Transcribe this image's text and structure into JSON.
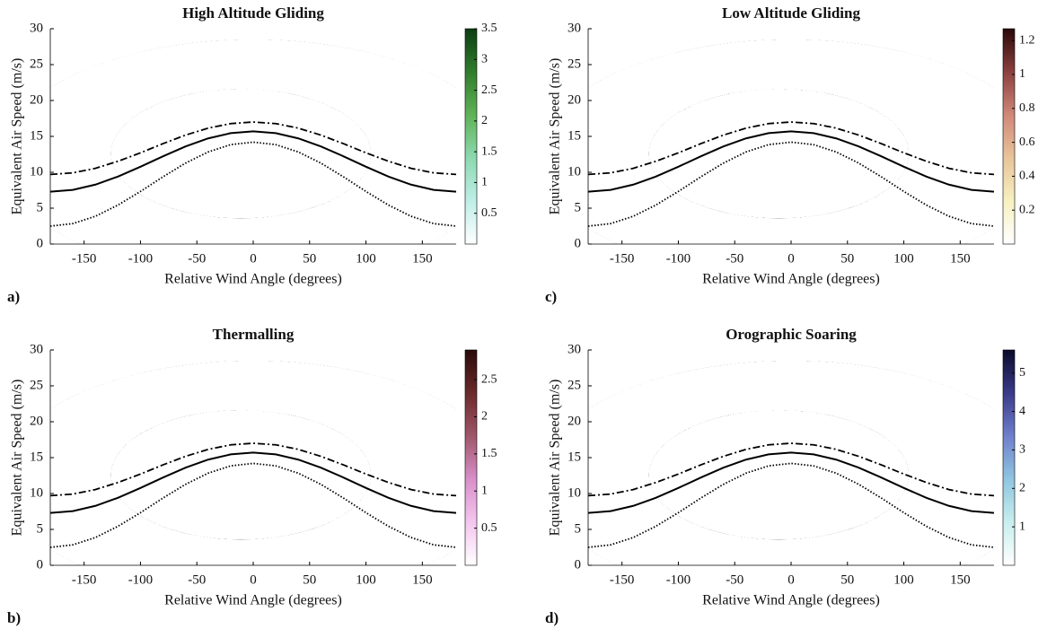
{
  "chart_data": [
    {
      "type": "density",
      "title": "High Altitude Gliding",
      "panel_label": "a)",
      "xlabel": "Relative Wind Angle (degrees)",
      "ylabel": "Equivalent Air Speed (m/s)",
      "xlim": [
        -180,
        180
      ],
      "ylim": [
        0,
        30
      ],
      "xticks": [
        -150,
        -100,
        -50,
        0,
        50,
        100,
        150
      ],
      "yticks": [
        0,
        5,
        10,
        15,
        20,
        25,
        30
      ],
      "colormap": [
        "#ffffff",
        "#bfeee8",
        "#8cd9b0",
        "#5fb356",
        "#2f7d2c",
        "#0d3d14"
      ],
      "clim": [
        0,
        3.5
      ],
      "cticks": [
        0.5,
        1,
        1.5,
        2,
        2.5,
        3,
        3.5
      ],
      "x": [
        -180,
        -160,
        -140,
        -120,
        -100,
        -80,
        -60,
        -40,
        -20,
        0,
        20,
        40,
        60,
        80,
        100,
        120,
        140,
        160,
        180
      ],
      "series": [
        {
          "color": "#000000",
          "style": "dashdot",
          "values": [
            9.7,
            9.92,
            10.55,
            11.53,
            12.71,
            13.99,
            15.18,
            16.15,
            16.78,
            17.0,
            16.78,
            16.15,
            15.18,
            13.99,
            12.71,
            11.53,
            10.55,
            9.92,
            9.7
          ]
        },
        {
          "color": "#000000",
          "style": "solid",
          "values": [
            7.3,
            7.55,
            8.28,
            9.4,
            10.77,
            12.23,
            13.6,
            14.72,
            15.45,
            15.7,
            15.45,
            14.72,
            13.6,
            12.23,
            10.77,
            9.4,
            8.28,
            7.55,
            7.3
          ]
        },
        {
          "color": "#000000",
          "style": "dotted",
          "values": [
            2.5,
            2.85,
            3.87,
            5.43,
            7.33,
            9.37,
            11.28,
            12.83,
            13.85,
            14.2,
            13.85,
            12.83,
            11.28,
            9.37,
            7.33,
            5.43,
            3.87,
            2.85,
            2.5
          ]
        }
      ]
    },
    {
      "type": "density",
      "title": "Thermalling",
      "panel_label": "b)",
      "xlabel": "Relative Wind Angle (degrees)",
      "ylabel": "Equivalent Air Speed (m/s)",
      "xlim": [
        -180,
        180
      ],
      "ylim": [
        0,
        30
      ],
      "xticks": [
        -150,
        -100,
        -50,
        0,
        50,
        100,
        150
      ],
      "yticks": [
        0,
        5,
        10,
        15,
        20,
        25,
        30
      ],
      "colormap": [
        "#ffffff",
        "#f4c6ef",
        "#d98fc8",
        "#a0566a",
        "#6b2a2a",
        "#2a0a0a"
      ],
      "clim": [
        0,
        2.9
      ],
      "cticks": [
        0.5,
        1,
        1.5,
        2,
        2.5
      ],
      "x": [
        -180,
        -160,
        -140,
        -120,
        -100,
        -80,
        -60,
        -40,
        -20,
        0,
        20,
        40,
        60,
        80,
        100,
        120,
        140,
        160,
        180
      ],
      "series": [
        {
          "color": "#000000",
          "style": "dashdot",
          "values": [
            9.7,
            9.92,
            10.55,
            11.53,
            12.71,
            13.99,
            15.18,
            16.15,
            16.78,
            17.0,
            16.78,
            16.15,
            15.18,
            13.99,
            12.71,
            11.53,
            10.55,
            9.92,
            9.7
          ]
        },
        {
          "color": "#000000",
          "style": "solid",
          "values": [
            7.3,
            7.55,
            8.28,
            9.4,
            10.77,
            12.23,
            13.6,
            14.72,
            15.45,
            15.7,
            15.45,
            14.72,
            13.6,
            12.23,
            10.77,
            9.4,
            8.28,
            7.55,
            7.3
          ]
        },
        {
          "color": "#000000",
          "style": "dotted",
          "values": [
            2.5,
            2.85,
            3.87,
            5.43,
            7.33,
            9.37,
            11.28,
            12.83,
            13.85,
            14.2,
            13.85,
            12.83,
            11.28,
            9.37,
            7.33,
            5.43,
            3.87,
            2.85,
            2.5
          ]
        }
      ]
    },
    {
      "type": "density",
      "title": "Low Altitude Gliding",
      "panel_label": "c)",
      "xlabel": "Relative Wind Angle (degrees)",
      "ylabel": "Equivalent Air Speed (m/s)",
      "xlim": [
        -180,
        180
      ],
      "ylim": [
        0,
        30
      ],
      "xticks": [
        -150,
        -100,
        -50,
        0,
        50,
        100,
        150
      ],
      "yticks": [
        0,
        5,
        10,
        15,
        20,
        25,
        30
      ],
      "colormap": [
        "#ffffff",
        "#f7f0c0",
        "#e8c49a",
        "#d08878",
        "#8c4040",
        "#2a0808"
      ],
      "clim": [
        0,
        1.27
      ],
      "cticks": [
        0.2,
        0.4,
        0.6,
        0.8,
        1,
        1.2
      ],
      "x": [
        -180,
        -160,
        -140,
        -120,
        -100,
        -80,
        -60,
        -40,
        -20,
        0,
        20,
        40,
        60,
        80,
        100,
        120,
        140,
        160,
        180
      ],
      "series": [
        {
          "color": "#000000",
          "style": "dashdot",
          "values": [
            9.7,
            9.92,
            10.55,
            11.53,
            12.71,
            13.99,
            15.18,
            16.15,
            16.78,
            17.0,
            16.78,
            16.15,
            15.18,
            13.99,
            12.71,
            11.53,
            10.55,
            9.92,
            9.7
          ]
        },
        {
          "color": "#000000",
          "style": "solid",
          "values": [
            7.3,
            7.55,
            8.28,
            9.4,
            10.77,
            12.23,
            13.6,
            14.72,
            15.45,
            15.7,
            15.45,
            14.72,
            13.6,
            12.23,
            10.77,
            9.4,
            8.28,
            7.55,
            7.3
          ]
        },
        {
          "color": "#000000",
          "style": "dotted",
          "values": [
            2.5,
            2.85,
            3.87,
            5.43,
            7.33,
            9.37,
            11.28,
            12.83,
            13.85,
            14.2,
            13.85,
            12.83,
            11.28,
            9.37,
            7.33,
            5.43,
            3.87,
            2.85,
            2.5
          ]
        }
      ]
    },
    {
      "type": "density",
      "title": "Orographic Soaring",
      "panel_label": "d)",
      "xlabel": "Relative Wind Angle (degrees)",
      "ylabel": "Equivalent Air Speed (m/s)",
      "xlim": [
        -180,
        180
      ],
      "ylim": [
        0,
        30
      ],
      "xticks": [
        -150,
        -100,
        -50,
        0,
        50,
        100,
        150
      ],
      "yticks": [
        0,
        5,
        10,
        15,
        20,
        25,
        30
      ],
      "colormap": [
        "#ffffff",
        "#c8eeee",
        "#8fc6e0",
        "#6f7fcc",
        "#3a3a8a",
        "#0a0a2a"
      ],
      "clim": [
        0,
        5.6
      ],
      "cticks": [
        1,
        2,
        3,
        4,
        5
      ],
      "x": [
        -180,
        -160,
        -140,
        -120,
        -100,
        -80,
        -60,
        -40,
        -20,
        0,
        20,
        40,
        60,
        80,
        100,
        120,
        140,
        160,
        180
      ],
      "series": [
        {
          "color": "#000000",
          "style": "dashdot",
          "values": [
            9.7,
            9.92,
            10.55,
            11.53,
            12.71,
            13.99,
            15.18,
            16.15,
            16.78,
            17.0,
            16.78,
            16.15,
            15.18,
            13.99,
            12.71,
            11.53,
            10.55,
            9.92,
            9.7
          ]
        },
        {
          "color": "#000000",
          "style": "solid",
          "values": [
            7.3,
            7.55,
            8.28,
            9.4,
            10.77,
            12.23,
            13.6,
            14.72,
            15.45,
            15.7,
            15.45,
            14.72,
            13.6,
            12.23,
            10.77,
            9.4,
            8.28,
            7.55,
            7.3
          ]
        },
        {
          "color": "#000000",
          "style": "dotted",
          "values": [
            2.5,
            2.85,
            3.87,
            5.43,
            7.33,
            9.37,
            11.28,
            12.83,
            13.85,
            14.2,
            13.85,
            12.83,
            11.28,
            9.37,
            7.33,
            5.43,
            3.87,
            2.85,
            2.5
          ]
        }
      ]
    }
  ]
}
